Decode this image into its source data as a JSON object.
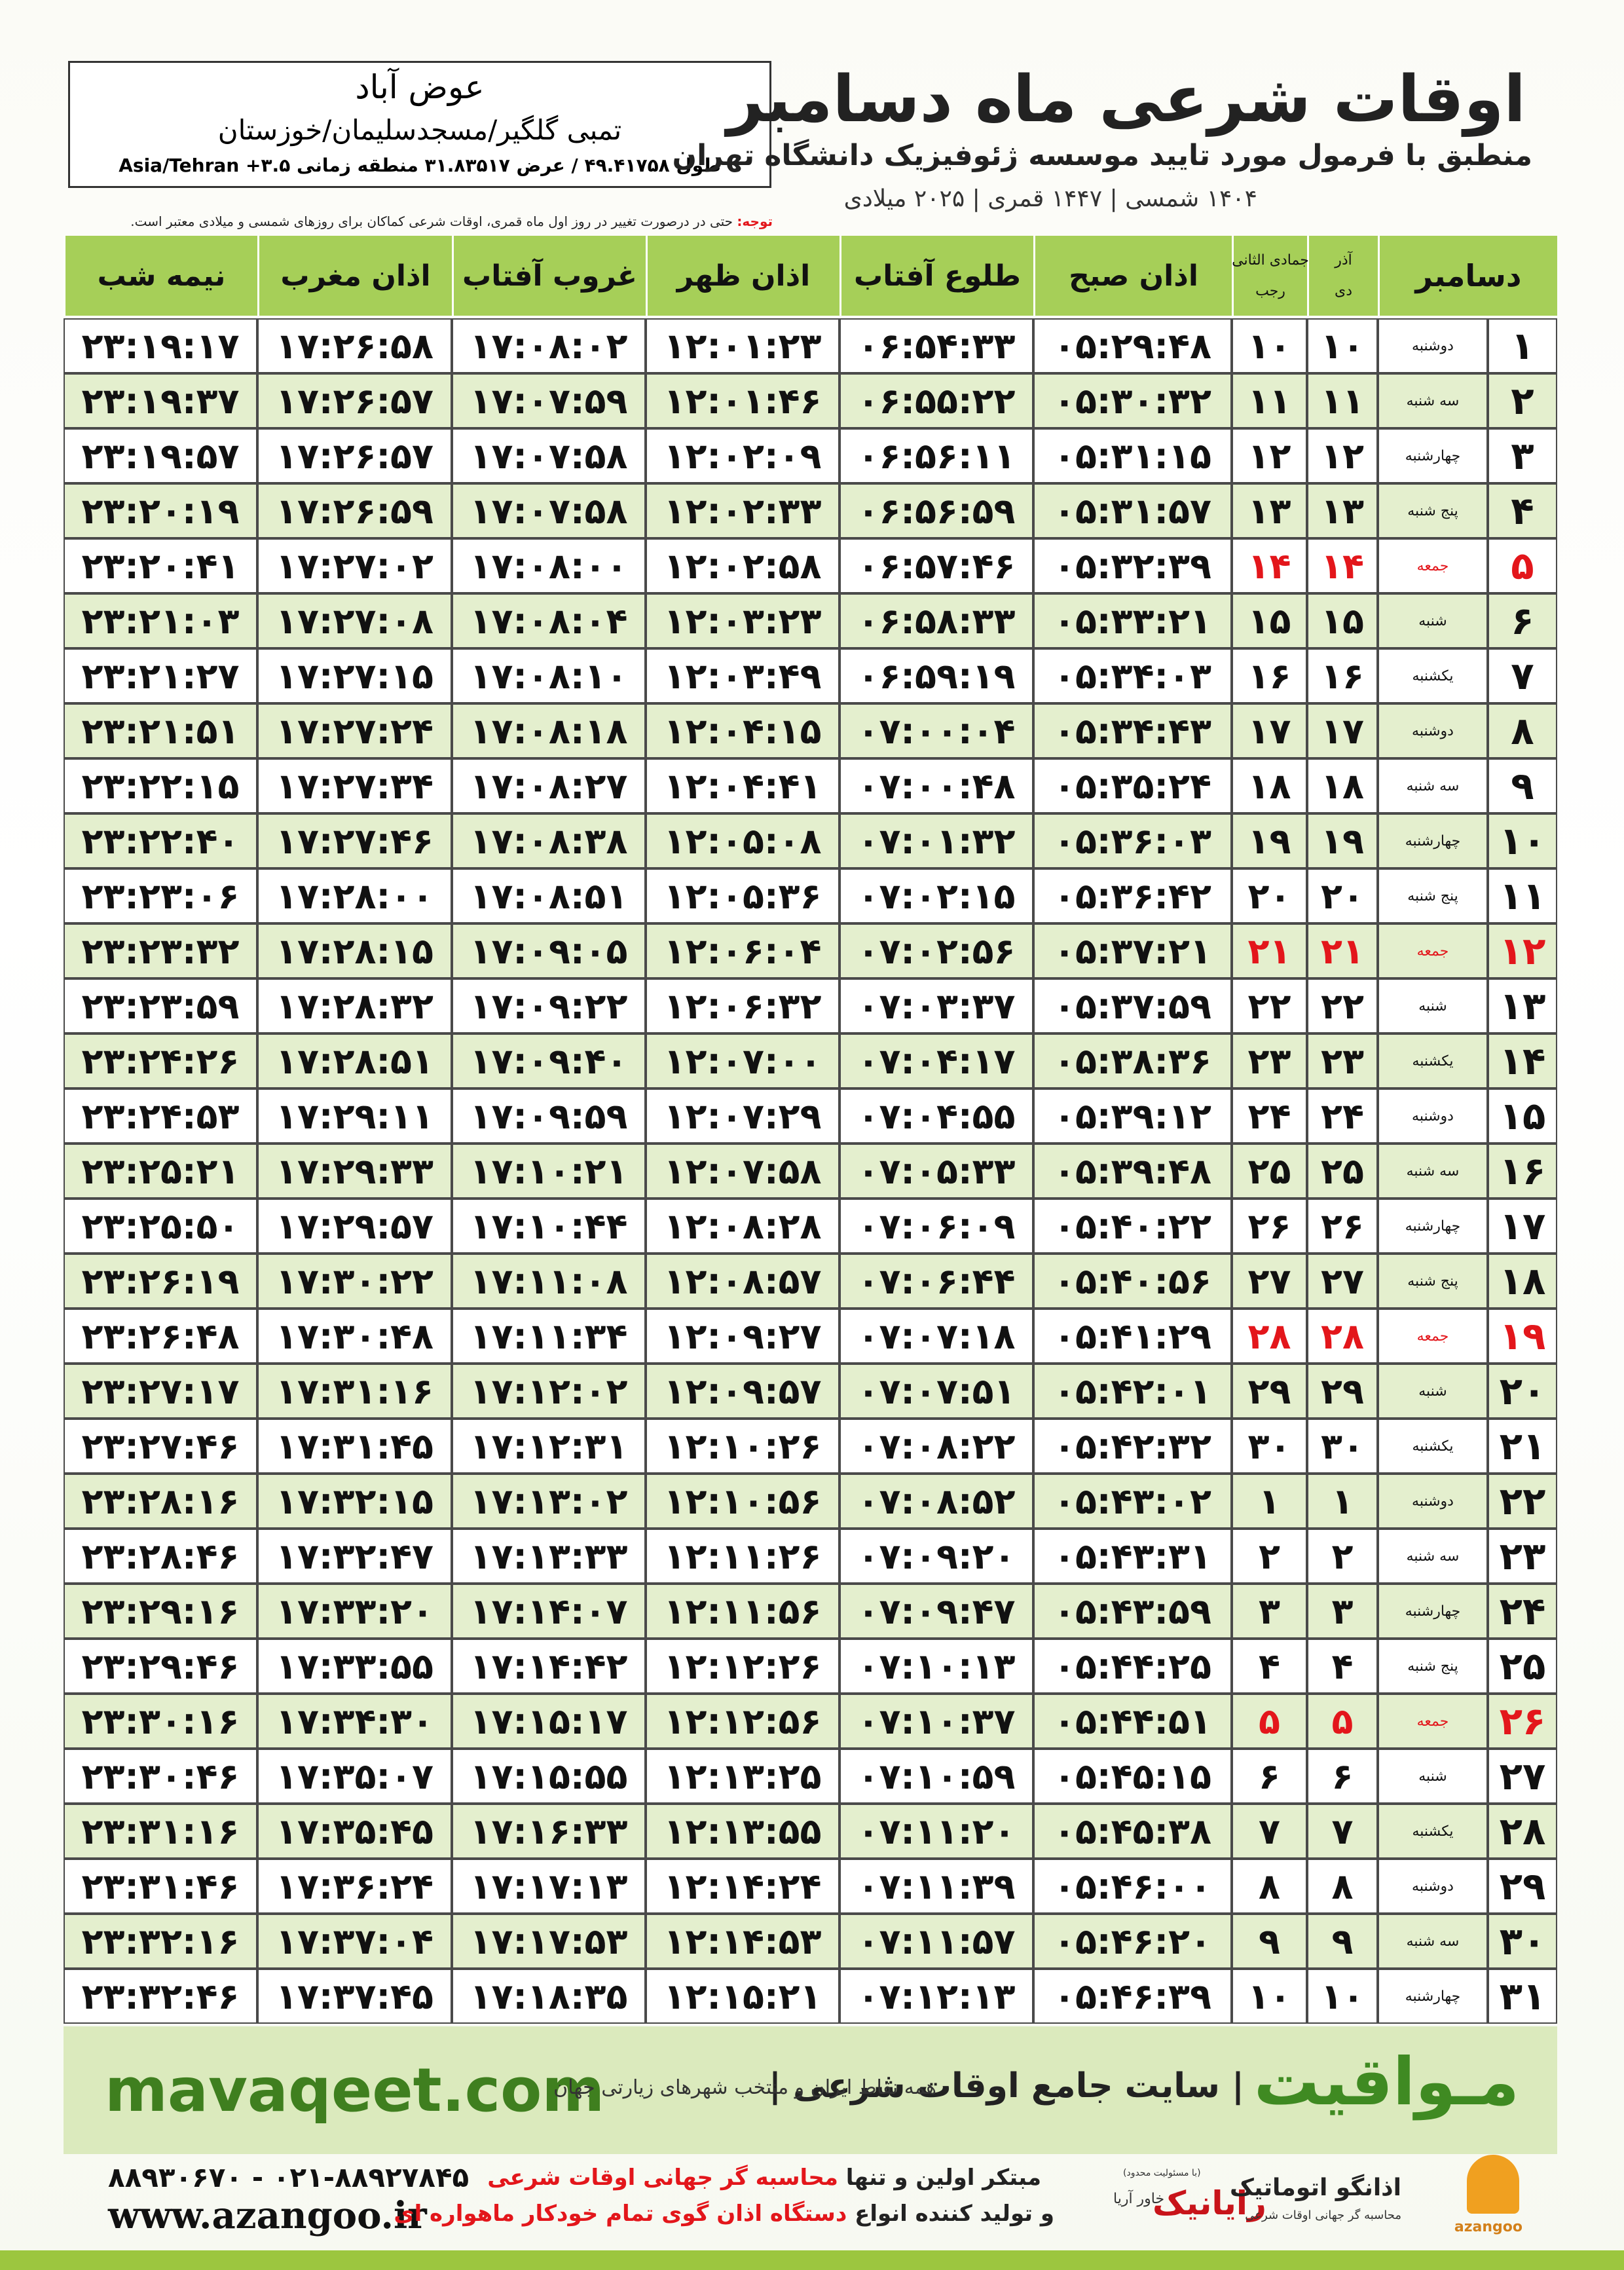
{
  "header": {
    "title": "اوقات شرعی ماه دسامبر",
    "subtitle": "منطبق با فرمول مورد تایید موسسه ژئوفیزیک دانشگاه تهران",
    "dates": "۱۴۰۴ شمسی | ۱۴۴۷ قمری | ۲۰۲۵ میلادی",
    "note_label": "توجه:",
    "note": "حتی در درصورت تغییر در روز اول ماه قمری، اوقات شرعی کماکان برای روزهای شمسی و میلادی معتبر است."
  },
  "location": {
    "name": "عوض آباد",
    "region": "تمبی گلگیر/مسجدسلیمان/خوزستان",
    "coords": "طول ۴۹.۴۱۷۵۸ / عرض ۳۱.۸۳۵۱۷ منطقه زمانی ۳.۵+ Asia/Tehran"
  },
  "table": {
    "month_header": "دسامبر",
    "date_columns": [
      [
        "آذر",
        "دی"
      ],
      [
        "جمادی الثانی",
        "رجب"
      ]
    ],
    "time_columns": [
      "اذان صبح",
      "طلوع آفتاب",
      "اذان ظهر",
      "غروب آفتاب",
      "اذان مغرب",
      "نیمه شب"
    ],
    "highlight": {
      "color": "#e3161b",
      "rows": [
        4,
        11,
        18,
        25
      ]
    },
    "rows": [
      [
        "۱",
        "دوشنبه",
        "۱۰",
        "۱۰",
        "۰۵:۲۹:۴۸",
        "۰۶:۵۴:۳۳",
        "۱۲:۰۱:۲۳",
        "۱۷:۰۸:۰۲",
        "۱۷:۲۶:۵۸",
        "۲۳:۱۹:۱۷"
      ],
      [
        "۲",
        "سه شنبه",
        "۱۱",
        "۱۱",
        "۰۵:۳۰:۳۲",
        "۰۶:۵۵:۲۲",
        "۱۲:۰۱:۴۶",
        "۱۷:۰۷:۵۹",
        "۱۷:۲۶:۵۷",
        "۲۳:۱۹:۳۷"
      ],
      [
        "۳",
        "چهارشنبه",
        "۱۲",
        "۱۲",
        "۰۵:۳۱:۱۵",
        "۰۶:۵۶:۱۱",
        "۱۲:۰۲:۰۹",
        "۱۷:۰۷:۵۸",
        "۱۷:۲۶:۵۷",
        "۲۳:۱۹:۵۷"
      ],
      [
        "۴",
        "پنج شنبه",
        "۱۳",
        "۱۳",
        "۰۵:۳۱:۵۷",
        "۰۶:۵۶:۵۹",
        "۱۲:۰۲:۳۳",
        "۱۷:۰۷:۵۸",
        "۱۷:۲۶:۵۹",
        "۲۳:۲۰:۱۹"
      ],
      [
        "۵",
        "جمعه",
        "۱۴",
        "۱۴",
        "۰۵:۳۲:۳۹",
        "۰۶:۵۷:۴۶",
        "۱۲:۰۲:۵۸",
        "۱۷:۰۸:۰۰",
        "۱۷:۲۷:۰۲",
        "۲۳:۲۰:۴۱"
      ],
      [
        "۶",
        "شنبه",
        "۱۵",
        "۱۵",
        "۰۵:۳۳:۲۱",
        "۰۶:۵۸:۳۳",
        "۱۲:۰۳:۲۳",
        "۱۷:۰۸:۰۴",
        "۱۷:۲۷:۰۸",
        "۲۳:۲۱:۰۳"
      ],
      [
        "۷",
        "یکشنبه",
        "۱۶",
        "۱۶",
        "۰۵:۳۴:۰۳",
        "۰۶:۵۹:۱۹",
        "۱۲:۰۳:۴۹",
        "۱۷:۰۸:۱۰",
        "۱۷:۲۷:۱۵",
        "۲۳:۲۱:۲۷"
      ],
      [
        "۸",
        "دوشنبه",
        "۱۷",
        "۱۷",
        "۰۵:۳۴:۴۳",
        "۰۷:۰۰:۰۴",
        "۱۲:۰۴:۱۵",
        "۱۷:۰۸:۱۸",
        "۱۷:۲۷:۲۴",
        "۲۳:۲۱:۵۱"
      ],
      [
        "۹",
        "سه شنبه",
        "۱۸",
        "۱۸",
        "۰۵:۳۵:۲۴",
        "۰۷:۰۰:۴۸",
        "۱۲:۰۴:۴۱",
        "۱۷:۰۸:۲۷",
        "۱۷:۲۷:۳۴",
        "۲۳:۲۲:۱۵"
      ],
      [
        "۱۰",
        "چهارشنبه",
        "۱۹",
        "۱۹",
        "۰۵:۳۶:۰۳",
        "۰۷:۰۱:۳۲",
        "۱۲:۰۵:۰۸",
        "۱۷:۰۸:۳۸",
        "۱۷:۲۷:۴۶",
        "۲۳:۲۲:۴۰"
      ],
      [
        "۱۱",
        "پنج شنبه",
        "۲۰",
        "۲۰",
        "۰۵:۳۶:۴۲",
        "۰۷:۰۲:۱۵",
        "۱۲:۰۵:۳۶",
        "۱۷:۰۸:۵۱",
        "۱۷:۲۸:۰۰",
        "۲۳:۲۳:۰۶"
      ],
      [
        "۱۲",
        "جمعه",
        "۲۱",
        "۲۱",
        "۰۵:۳۷:۲۱",
        "۰۷:۰۲:۵۶",
        "۱۲:۰۶:۰۴",
        "۱۷:۰۹:۰۵",
        "۱۷:۲۸:۱۵",
        "۲۳:۲۳:۳۲"
      ],
      [
        "۱۳",
        "شنبه",
        "۲۲",
        "۲۲",
        "۰۵:۳۷:۵۹",
        "۰۷:۰۳:۳۷",
        "۱۲:۰۶:۳۲",
        "۱۷:۰۹:۲۲",
        "۱۷:۲۸:۳۲",
        "۲۳:۲۳:۵۹"
      ],
      [
        "۱۴",
        "یکشنبه",
        "۲۳",
        "۲۳",
        "۰۵:۳۸:۳۶",
        "۰۷:۰۴:۱۷",
        "۱۲:۰۷:۰۰",
        "۱۷:۰۹:۴۰",
        "۱۷:۲۸:۵۱",
        "۲۳:۲۴:۲۶"
      ],
      [
        "۱۵",
        "دوشنبه",
        "۲۴",
        "۲۴",
        "۰۵:۳۹:۱۲",
        "۰۷:۰۴:۵۵",
        "۱۲:۰۷:۲۹",
        "۱۷:۰۹:۵۹",
        "۱۷:۲۹:۱۱",
        "۲۳:۲۴:۵۳"
      ],
      [
        "۱۶",
        "سه شنبه",
        "۲۵",
        "۲۵",
        "۰۵:۳۹:۴۸",
        "۰۷:۰۵:۳۳",
        "۱۲:۰۷:۵۸",
        "۱۷:۱۰:۲۱",
        "۱۷:۲۹:۳۳",
        "۲۳:۲۵:۲۱"
      ],
      [
        "۱۷",
        "چهارشنبه",
        "۲۶",
        "۲۶",
        "۰۵:۴۰:۲۲",
        "۰۷:۰۶:۰۹",
        "۱۲:۰۸:۲۸",
        "۱۷:۱۰:۴۴",
        "۱۷:۲۹:۵۷",
        "۲۳:۲۵:۵۰"
      ],
      [
        "۱۸",
        "پنج شنبه",
        "۲۷",
        "۲۷",
        "۰۵:۴۰:۵۶",
        "۰۷:۰۶:۴۴",
        "۱۲:۰۸:۵۷",
        "۱۷:۱۱:۰۸",
        "۱۷:۳۰:۲۲",
        "۲۳:۲۶:۱۹"
      ],
      [
        "۱۹",
        "جمعه",
        "۲۸",
        "۲۸",
        "۰۵:۴۱:۲۹",
        "۰۷:۰۷:۱۸",
        "۱۲:۰۹:۲۷",
        "۱۷:۱۱:۳۴",
        "۱۷:۳۰:۴۸",
        "۲۳:۲۶:۴۸"
      ],
      [
        "۲۰",
        "شنبه",
        "۲۹",
        "۲۹",
        "۰۵:۴۲:۰۱",
        "۰۷:۰۷:۵۱",
        "۱۲:۰۹:۵۷",
        "۱۷:۱۲:۰۲",
        "۱۷:۳۱:۱۶",
        "۲۳:۲۷:۱۷"
      ],
      [
        "۲۱",
        "یکشنبه",
        "۳۰",
        "۳۰",
        "۰۵:۴۲:۳۲",
        "۰۷:۰۸:۲۲",
        "۱۲:۱۰:۲۶",
        "۱۷:۱۲:۳۱",
        "۱۷:۳۱:۴۵",
        "۲۳:۲۷:۴۶"
      ],
      [
        "۲۲",
        "دوشنبه",
        "۱",
        "۱",
        "۰۵:۴۳:۰۲",
        "۰۷:۰۸:۵۲",
        "۱۲:۱۰:۵۶",
        "۱۷:۱۳:۰۲",
        "۱۷:۳۲:۱۵",
        "۲۳:۲۸:۱۶"
      ],
      [
        "۲۳",
        "سه شنبه",
        "۲",
        "۲",
        "۰۵:۴۳:۳۱",
        "۰۷:۰۹:۲۰",
        "۱۲:۱۱:۲۶",
        "۱۷:۱۳:۳۳",
        "۱۷:۳۲:۴۷",
        "۲۳:۲۸:۴۶"
      ],
      [
        "۲۴",
        "چهارشنبه",
        "۳",
        "۳",
        "۰۵:۴۳:۵۹",
        "۰۷:۰۹:۴۷",
        "۱۲:۱۱:۵۶",
        "۱۷:۱۴:۰۷",
        "۱۷:۳۳:۲۰",
        "۲۳:۲۹:۱۶"
      ],
      [
        "۲۵",
        "پنج شنبه",
        "۴",
        "۴",
        "۰۵:۴۴:۲۵",
        "۰۷:۱۰:۱۳",
        "۱۲:۱۲:۲۶",
        "۱۷:۱۴:۴۲",
        "۱۷:۳۳:۵۵",
        "۲۳:۲۹:۴۶"
      ],
      [
        "۲۶",
        "جمعه",
        "۵",
        "۵",
        "۰۵:۴۴:۵۱",
        "۰۷:۱۰:۳۷",
        "۱۲:۱۲:۵۶",
        "۱۷:۱۵:۱۷",
        "۱۷:۳۴:۳۰",
        "۲۳:۳۰:۱۶"
      ],
      [
        "۲۷",
        "شنبه",
        "۶",
        "۶",
        "۰۵:۴۵:۱۵",
        "۰۷:۱۰:۵۹",
        "۱۲:۱۳:۲۵",
        "۱۷:۱۵:۵۵",
        "۱۷:۳۵:۰۷",
        "۲۳:۳۰:۴۶"
      ],
      [
        "۲۸",
        "یکشنبه",
        "۷",
        "۷",
        "۰۵:۴۵:۳۸",
        "۰۷:۱۱:۲۰",
        "۱۲:۱۳:۵۵",
        "۱۷:۱۶:۳۳",
        "۱۷:۳۵:۴۵",
        "۲۳:۳۱:۱۶"
      ],
      [
        "۲۹",
        "دوشنبه",
        "۸",
        "۸",
        "۰۵:۴۶:۰۰",
        "۰۷:۱۱:۳۹",
        "۱۲:۱۴:۲۴",
        "۱۷:۱۷:۱۳",
        "۱۷:۳۶:۲۴",
        "۲۳:۳۱:۴۶"
      ],
      [
        "۳۰",
        "سه شنبه",
        "۹",
        "۹",
        "۰۵:۴۶:۲۰",
        "۰۷:۱۱:۵۷",
        "۱۲:۱۴:۵۳",
        "۱۷:۱۷:۵۳",
        "۱۷:۳۷:۰۴",
        "۲۳:۳۲:۱۶"
      ],
      [
        "۳۱",
        "چهارشنبه",
        "۱۰",
        "۱۰",
        "۰۵:۴۶:۳۹",
        "۰۷:۱۲:۱۳",
        "۱۲:۱۵:۲۱",
        "۱۷:۱۸:۳۵",
        "۱۷:۳۷:۴۵",
        "۲۳:۳۲:۴۶"
      ]
    ]
  },
  "footer": {
    "site": "mavaqeet.com",
    "brand": "مـواقیت",
    "slogan": "| سایت جامع اوقات شرعی |",
    "coverage": "همه نقاط ایران و منتخب شهرهای زیارتی جهان",
    "phones": "۰۲۱-۸۸۹۲۷۸۴۵ - ۸۸۹۳۰۶۷۰",
    "web": "www.azangoo.ir",
    "line1": [
      "مبتکر اولین و تنها",
      "محاسبه گر جهانی اوقات شرعی"
    ],
    "line2": [
      "و تولید کننده انواع",
      "دستگاه اذان گوی تمام خودکار ماهواره ای"
    ],
    "company": {
      "note": "(با مسئولیت محدود)",
      "name": "رایانیک",
      "sub": "خاور آریا"
    },
    "logo": {
      "name": "اذانگو اتوماتیک",
      "tagline": "محاسبه گر جهانی اوقات شرعی",
      "latin": "azangoo"
    }
  }
}
